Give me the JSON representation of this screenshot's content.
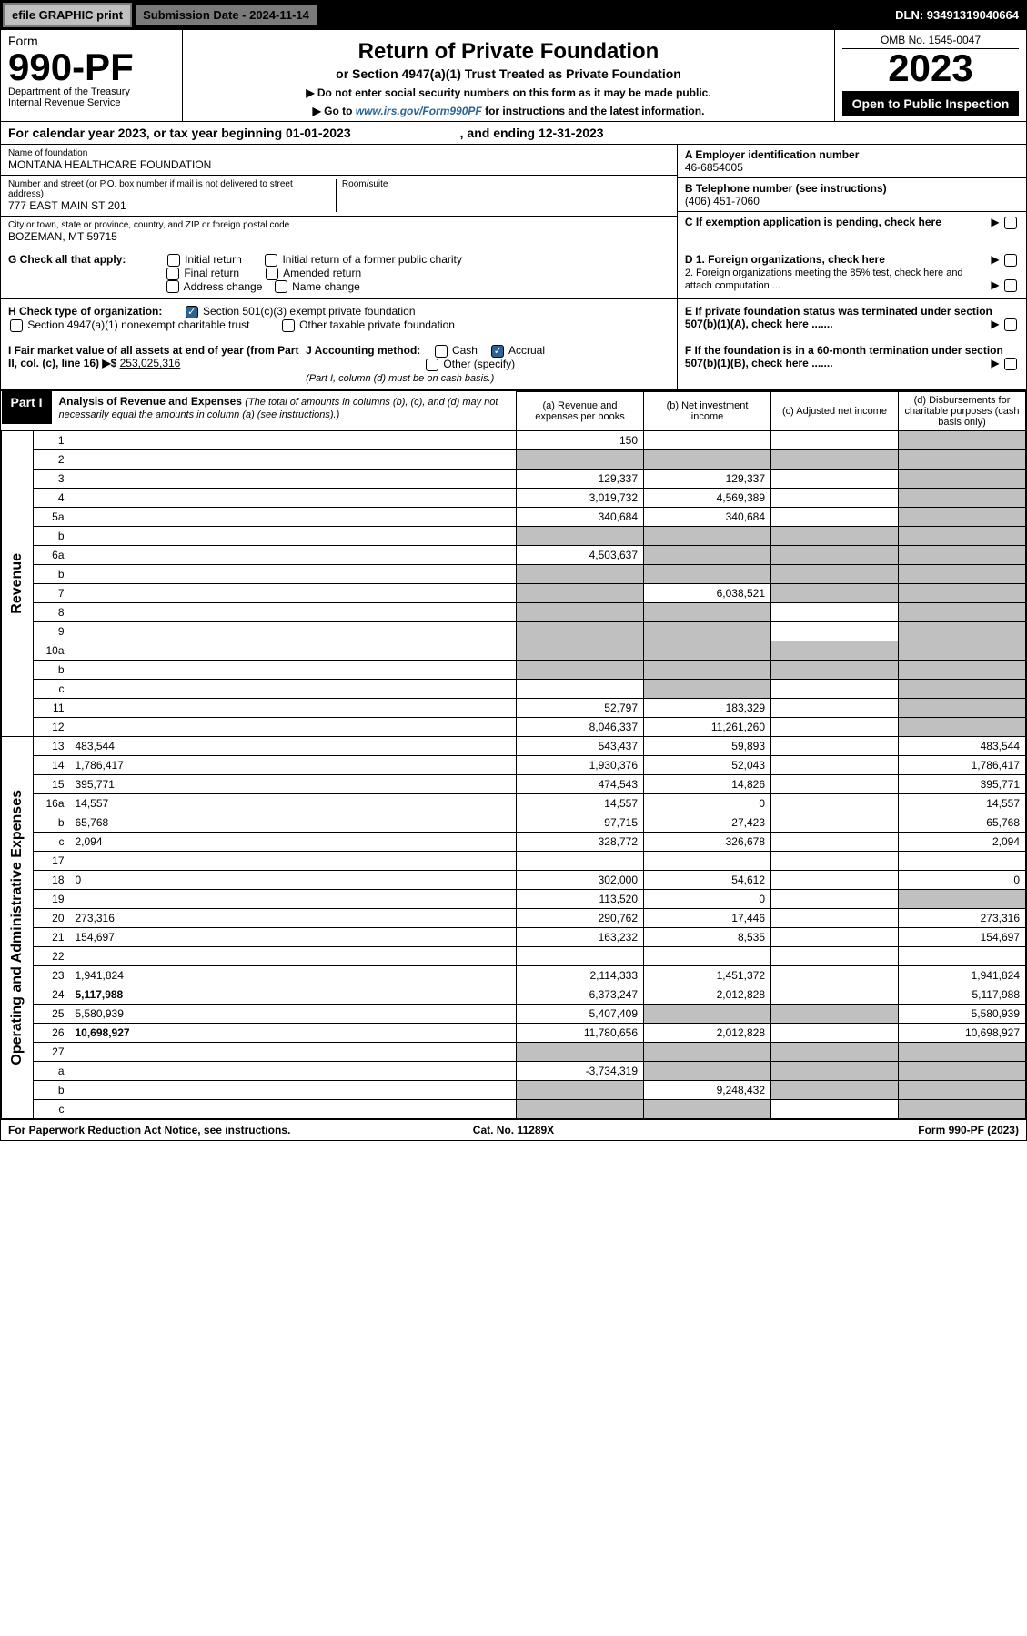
{
  "topbar": {
    "efile": "efile GRAPHIC print",
    "submission": "Submission Date - 2024-11-14",
    "dln": "DLN: 93491319040664"
  },
  "header": {
    "form_word": "Form",
    "form_no": "990-PF",
    "dept": "Department of the Treasury",
    "irs": "Internal Revenue Service",
    "title": "Return of Private Foundation",
    "subtitle": "or Section 4947(a)(1) Trust Treated as Private Foundation",
    "warn1": "▶ Do not enter social security numbers on this form as it may be made public.",
    "warn2_pre": "▶ Go to ",
    "warn2_link": "www.irs.gov/Form990PF",
    "warn2_post": " for instructions and the latest information.",
    "omb": "OMB No. 1545-0047",
    "year": "2023",
    "open": "Open to Public Inspection"
  },
  "calyear": {
    "text1": "For calendar year 2023, or tax year beginning 01-01-2023",
    "text2": ", and ending 12-31-2023"
  },
  "info": {
    "name_label": "Name of foundation",
    "name": "MONTANA HEALTHCARE FOUNDATION",
    "addr_label": "Number and street (or P.O. box number if mail is not delivered to street address)",
    "addr": "777 EAST MAIN ST 201",
    "room_label": "Room/suite",
    "city_label": "City or town, state or province, country, and ZIP or foreign postal code",
    "city": "BOZEMAN, MT  59715",
    "a_label": "A Employer identification number",
    "a_val": "46-6854005",
    "b_label": "B Telephone number (see instructions)",
    "b_val": "(406) 451-7060",
    "c_label": "C If exemption application is pending, check here",
    "g_label": "G Check all that apply:",
    "g_opts": [
      "Initial return",
      "Initial return of a former public charity",
      "Final return",
      "Amended return",
      "Address change",
      "Name change"
    ],
    "h_label": "H Check type of organization:",
    "h_opts": [
      "Section 501(c)(3) exempt private foundation",
      "Section 4947(a)(1) nonexempt charitable trust",
      "Other taxable private foundation"
    ],
    "i_label": "I Fair market value of all assets at end of year (from Part II, col. (c), line 16) ▶$",
    "i_val": "253,025,316",
    "j_label": "J Accounting method:",
    "j_opts": [
      "Cash",
      "Accrual"
    ],
    "j_other": "Other (specify)",
    "j_note": "(Part I, column (d) must be on cash basis.)",
    "d1": "D 1. Foreign organizations, check here",
    "d2": "2. Foreign organizations meeting the 85% test, check here and attach computation ...",
    "e": "E  If private foundation status was terminated under section 507(b)(1)(A), check here .......",
    "f": "F  If the foundation is in a 60-month termination under section 507(b)(1)(B), check here ......."
  },
  "part1": {
    "label": "Part I",
    "title": "Analysis of Revenue and Expenses",
    "note": "(The total of amounts in columns (b), (c), and (d) may not necessarily equal the amounts in column (a) (see instructions).)",
    "cols": {
      "a": "(a) Revenue and expenses per books",
      "b": "(b) Net investment income",
      "c": "(c) Adjusted net income",
      "d": "(d) Disbursements for charitable purposes (cash basis only)"
    }
  },
  "sections": {
    "revenue": "Revenue",
    "expenses": "Operating and Administrative Expenses"
  },
  "rows": [
    {
      "n": "1",
      "d": "",
      "a": "150",
      "b": "",
      "c": "",
      "shade": [
        "d"
      ]
    },
    {
      "n": "2",
      "d": "",
      "a": "",
      "b": "",
      "c": "",
      "shade": [
        "a",
        "b",
        "c",
        "d"
      ],
      "bold": false
    },
    {
      "n": "3",
      "d": "",
      "a": "129,337",
      "b": "129,337",
      "c": "",
      "shade": [
        "d"
      ]
    },
    {
      "n": "4",
      "d": "",
      "a": "3,019,732",
      "b": "4,569,389",
      "c": "",
      "shade": [
        "d"
      ]
    },
    {
      "n": "5a",
      "d": "",
      "a": "340,684",
      "b": "340,684",
      "c": "",
      "shade": [
        "d"
      ]
    },
    {
      "n": "b",
      "d": "",
      "a": "",
      "b": "",
      "c": "",
      "shade": [
        "a",
        "b",
        "c",
        "d"
      ]
    },
    {
      "n": "6a",
      "d": "",
      "a": "4,503,637",
      "b": "",
      "c": "",
      "shade": [
        "b",
        "c",
        "d"
      ]
    },
    {
      "n": "b",
      "d": "",
      "a": "",
      "b": "",
      "c": "",
      "shade": [
        "a",
        "b",
        "c",
        "d"
      ]
    },
    {
      "n": "7",
      "d": "",
      "a": "",
      "b": "6,038,521",
      "c": "",
      "shade": [
        "a",
        "c",
        "d"
      ]
    },
    {
      "n": "8",
      "d": "",
      "a": "",
      "b": "",
      "c": "",
      "shade": [
        "a",
        "b",
        "d"
      ]
    },
    {
      "n": "9",
      "d": "",
      "a": "",
      "b": "",
      "c": "",
      "shade": [
        "a",
        "b",
        "d"
      ]
    },
    {
      "n": "10a",
      "d": "",
      "a": "",
      "b": "",
      "c": "",
      "shade": [
        "a",
        "b",
        "c",
        "d"
      ]
    },
    {
      "n": "b",
      "d": "",
      "a": "",
      "b": "",
      "c": "",
      "shade": [
        "a",
        "b",
        "c",
        "d"
      ]
    },
    {
      "n": "c",
      "d": "",
      "a": "",
      "b": "",
      "c": "",
      "shade": [
        "b",
        "d"
      ]
    },
    {
      "n": "11",
      "d": "",
      "a": "52,797",
      "b": "183,329",
      "c": "",
      "shade": [
        "d"
      ]
    },
    {
      "n": "12",
      "d": "",
      "a": "8,046,337",
      "b": "11,261,260",
      "c": "",
      "shade": [
        "d"
      ],
      "bold": true
    },
    {
      "n": "13",
      "d": "483,544",
      "a": "543,437",
      "b": "59,893",
      "c": "",
      "sec": "exp"
    },
    {
      "n": "14",
      "d": "1,786,417",
      "a": "1,930,376",
      "b": "52,043",
      "c": ""
    },
    {
      "n": "15",
      "d": "395,771",
      "a": "474,543",
      "b": "14,826",
      "c": ""
    },
    {
      "n": "16a",
      "d": "14,557",
      "a": "14,557",
      "b": "0",
      "c": ""
    },
    {
      "n": "b",
      "d": "65,768",
      "a": "97,715",
      "b": "27,423",
      "c": ""
    },
    {
      "n": "c",
      "d": "2,094",
      "a": "328,772",
      "b": "326,678",
      "c": ""
    },
    {
      "n": "17",
      "d": "",
      "a": "",
      "b": "",
      "c": ""
    },
    {
      "n": "18",
      "d": "0",
      "a": "302,000",
      "b": "54,612",
      "c": ""
    },
    {
      "n": "19",
      "d": "",
      "a": "113,520",
      "b": "0",
      "c": "",
      "shade": [
        "d"
      ]
    },
    {
      "n": "20",
      "d": "273,316",
      "a": "290,762",
      "b": "17,446",
      "c": ""
    },
    {
      "n": "21",
      "d": "154,697",
      "a": "163,232",
      "b": "8,535",
      "c": ""
    },
    {
      "n": "22",
      "d": "",
      "a": "",
      "b": "",
      "c": ""
    },
    {
      "n": "23",
      "d": "1,941,824",
      "a": "2,114,333",
      "b": "1,451,372",
      "c": ""
    },
    {
      "n": "24",
      "d": "5,117,988",
      "a": "6,373,247",
      "b": "2,012,828",
      "c": "",
      "bold": true
    },
    {
      "n": "25",
      "d": "5,580,939",
      "a": "5,407,409",
      "b": "",
      "c": "",
      "shade": [
        "b",
        "c"
      ]
    },
    {
      "n": "26",
      "d": "10,698,927",
      "a": "11,780,656",
      "b": "2,012,828",
      "c": "",
      "bold": true
    },
    {
      "n": "27",
      "d": "",
      "a": "",
      "b": "",
      "c": "",
      "shade": [
        "a",
        "b",
        "c",
        "d"
      ]
    },
    {
      "n": "a",
      "d": "",
      "a": "-3,734,319",
      "b": "",
      "c": "",
      "shade": [
        "b",
        "c",
        "d"
      ],
      "bold": true
    },
    {
      "n": "b",
      "d": "",
      "a": "",
      "b": "9,248,432",
      "c": "",
      "shade": [
        "a",
        "c",
        "d"
      ],
      "bold": true
    },
    {
      "n": "c",
      "d": "",
      "a": "",
      "b": "",
      "c": "",
      "shade": [
        "a",
        "b",
        "d"
      ],
      "bold": true
    }
  ],
  "foot": {
    "left": "For Paperwork Reduction Act Notice, see instructions.",
    "mid": "Cat. No. 11289X",
    "right": "Form 990-PF (2023)"
  }
}
